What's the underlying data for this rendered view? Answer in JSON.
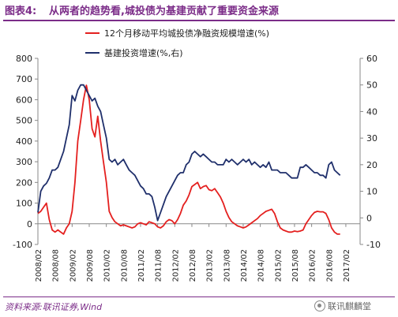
{
  "header": {
    "figure_label": "图表4:",
    "title": "从两者的趋势看,城投债为基建贡献了重要资金来源"
  },
  "footer": {
    "source": "资料来源:联讯证券,Wind",
    "watermark": "联讯麒麟堂"
  },
  "colors": {
    "accent": "#7b2c88",
    "series_red": "#e4201f",
    "series_navy": "#1f2f6b"
  },
  "chart_data": {
    "type": "line",
    "title": "",
    "x_labels": [
      "2008/02",
      "2008/08",
      "2009/02",
      "2009/08",
      "2010/02",
      "2010/08",
      "2011/02",
      "2011/08",
      "2012/02",
      "2012/08",
      "2013/02",
      "2013/08",
      "2014/02",
      "2014/08",
      "2015/02",
      "2015/08",
      "2016/02",
      "2016/08",
      "2017/02"
    ],
    "x_range": [
      0,
      113
    ],
    "y_left": {
      "range": [
        -100,
        800
      ],
      "ticks": [
        -100,
        0,
        100,
        200,
        300,
        400,
        500,
        600,
        700,
        800
      ]
    },
    "y_right": {
      "range": [
        -10,
        60
      ],
      "ticks": [
        -10,
        0,
        10,
        20,
        30,
        40,
        50,
        60
      ]
    },
    "legend": {
      "position": "top"
    },
    "series": [
      {
        "name": "12个月移动平均城投债净融资规模增速(%)",
        "axis": "left",
        "color": "#e4201f",
        "points": [
          [
            0,
            50
          ],
          [
            1,
            60
          ],
          [
            2,
            80
          ],
          [
            3,
            100
          ],
          [
            4,
            20
          ],
          [
            5,
            -30
          ],
          [
            6,
            -40
          ],
          [
            7,
            -30
          ],
          [
            8,
            -40
          ],
          [
            9,
            -50
          ],
          [
            10,
            -20
          ],
          [
            11,
            0
          ],
          [
            12,
            60
          ],
          [
            13,
            200
          ],
          [
            14,
            400
          ],
          [
            15,
            500
          ],
          [
            16,
            600
          ],
          [
            17,
            670
          ],
          [
            18,
            600
          ],
          [
            19,
            460
          ],
          [
            20,
            420
          ],
          [
            21,
            520
          ],
          [
            22,
            400
          ],
          [
            23,
            300
          ],
          [
            24,
            200
          ],
          [
            25,
            60
          ],
          [
            26,
            30
          ],
          [
            27,
            10
          ],
          [
            28,
            0
          ],
          [
            29,
            -10
          ],
          [
            30,
            -5
          ],
          [
            31,
            -10
          ],
          [
            32,
            -15
          ],
          [
            33,
            -20
          ],
          [
            34,
            -15
          ],
          [
            35,
            0
          ],
          [
            36,
            5
          ],
          [
            37,
            0
          ],
          [
            38,
            -5
          ],
          [
            39,
            10
          ],
          [
            40,
            5
          ],
          [
            41,
            0
          ],
          [
            42,
            -15
          ],
          [
            43,
            -20
          ],
          [
            44,
            -10
          ],
          [
            45,
            10
          ],
          [
            46,
            20
          ],
          [
            47,
            15
          ],
          [
            48,
            0
          ],
          [
            49,
            20
          ],
          [
            50,
            50
          ],
          [
            51,
            90
          ],
          [
            52,
            110
          ],
          [
            53,
            140
          ],
          [
            54,
            180
          ],
          [
            55,
            190
          ],
          [
            56,
            200
          ],
          [
            57,
            170
          ],
          [
            58,
            180
          ],
          [
            59,
            185
          ],
          [
            60,
            165
          ],
          [
            61,
            160
          ],
          [
            62,
            170
          ],
          [
            63,
            150
          ],
          [
            64,
            130
          ],
          [
            65,
            100
          ],
          [
            66,
            60
          ],
          [
            67,
            30
          ],
          [
            68,
            10
          ],
          [
            69,
            0
          ],
          [
            70,
            -10
          ],
          [
            71,
            -15
          ],
          [
            72,
            -20
          ],
          [
            73,
            -15
          ],
          [
            74,
            -5
          ],
          [
            75,
            5
          ],
          [
            76,
            15
          ],
          [
            77,
            25
          ],
          [
            78,
            40
          ],
          [
            79,
            50
          ],
          [
            80,
            60
          ],
          [
            81,
            65
          ],
          [
            82,
            70
          ],
          [
            83,
            50
          ],
          [
            84,
            10
          ],
          [
            85,
            -20
          ],
          [
            86,
            -30
          ],
          [
            87,
            -35
          ],
          [
            88,
            -40
          ],
          [
            89,
            -40
          ],
          [
            90,
            -35
          ],
          [
            91,
            -38
          ],
          [
            92,
            -35
          ],
          [
            93,
            -30
          ],
          [
            94,
            0
          ],
          [
            95,
            20
          ],
          [
            96,
            40
          ],
          [
            97,
            55
          ],
          [
            98,
            60
          ],
          [
            99,
            58
          ],
          [
            100,
            58
          ],
          [
            101,
            50
          ],
          [
            102,
            20
          ],
          [
            103,
            -20
          ],
          [
            104,
            -40
          ],
          [
            105,
            -50
          ],
          [
            106,
            -50
          ]
        ]
      },
      {
        "name": "基建投资增速(%,右)",
        "axis": "right",
        "color": "#1f2f6b",
        "points": [
          [
            0,
            2
          ],
          [
            1,
            10
          ],
          [
            2,
            12
          ],
          [
            3,
            13
          ],
          [
            4,
            15
          ],
          [
            5,
            18
          ],
          [
            6,
            18
          ],
          [
            7,
            19
          ],
          [
            8,
            22
          ],
          [
            9,
            25
          ],
          [
            10,
            30
          ],
          [
            11,
            35
          ],
          [
            12,
            46
          ],
          [
            13,
            44
          ],
          [
            14,
            48
          ],
          [
            15,
            50
          ],
          [
            16,
            50
          ],
          [
            17,
            48
          ],
          [
            18,
            46
          ],
          [
            19,
            44
          ],
          [
            20,
            45
          ],
          [
            21,
            42
          ],
          [
            22,
            40
          ],
          [
            23,
            35
          ],
          [
            24,
            30
          ],
          [
            25,
            22
          ],
          [
            26,
            21
          ],
          [
            27,
            22
          ],
          [
            28,
            20
          ],
          [
            29,
            21
          ],
          [
            30,
            22
          ],
          [
            31,
            20
          ],
          [
            32,
            18
          ],
          [
            33,
            17
          ],
          [
            34,
            16
          ],
          [
            35,
            14
          ],
          [
            36,
            12
          ],
          [
            37,
            11
          ],
          [
            38,
            9
          ],
          [
            39,
            9
          ],
          [
            40,
            8
          ],
          [
            41,
            4
          ],
          [
            42,
            -1
          ],
          [
            43,
            2
          ],
          [
            44,
            5
          ],
          [
            45,
            8
          ],
          [
            46,
            10
          ],
          [
            47,
            12
          ],
          [
            48,
            14
          ],
          [
            49,
            16
          ],
          [
            50,
            17
          ],
          [
            51,
            17
          ],
          [
            52,
            20
          ],
          [
            53,
            21
          ],
          [
            54,
            24
          ],
          [
            55,
            25
          ],
          [
            56,
            24
          ],
          [
            57,
            23
          ],
          [
            58,
            24
          ],
          [
            59,
            23
          ],
          [
            60,
            22
          ],
          [
            61,
            21
          ],
          [
            62,
            21
          ],
          [
            63,
            20
          ],
          [
            64,
            20
          ],
          [
            65,
            20
          ],
          [
            66,
            22
          ],
          [
            67,
            21
          ],
          [
            68,
            22
          ],
          [
            69,
            21
          ],
          [
            70,
            20
          ],
          [
            71,
            21
          ],
          [
            72,
            22
          ],
          [
            73,
            21
          ],
          [
            74,
            22
          ],
          [
            75,
            20
          ],
          [
            76,
            21
          ],
          [
            77,
            20
          ],
          [
            78,
            19
          ],
          [
            79,
            20
          ],
          [
            80,
            19
          ],
          [
            81,
            21
          ],
          [
            82,
            18
          ],
          [
            83,
            18
          ],
          [
            84,
            18
          ],
          [
            85,
            17
          ],
          [
            86,
            17
          ],
          [
            87,
            17
          ],
          [
            88,
            16
          ],
          [
            89,
            15
          ],
          [
            90,
            15
          ],
          [
            91,
            15
          ],
          [
            92,
            19
          ],
          [
            93,
            19
          ],
          [
            94,
            20
          ],
          [
            95,
            19
          ],
          [
            96,
            18
          ],
          [
            97,
            17
          ],
          [
            98,
            17
          ],
          [
            99,
            16
          ],
          [
            100,
            16
          ],
          [
            101,
            15
          ],
          [
            102,
            20
          ],
          [
            103,
            21
          ],
          [
            104,
            18
          ],
          [
            105,
            17
          ],
          [
            106,
            16
          ]
        ]
      }
    ]
  }
}
